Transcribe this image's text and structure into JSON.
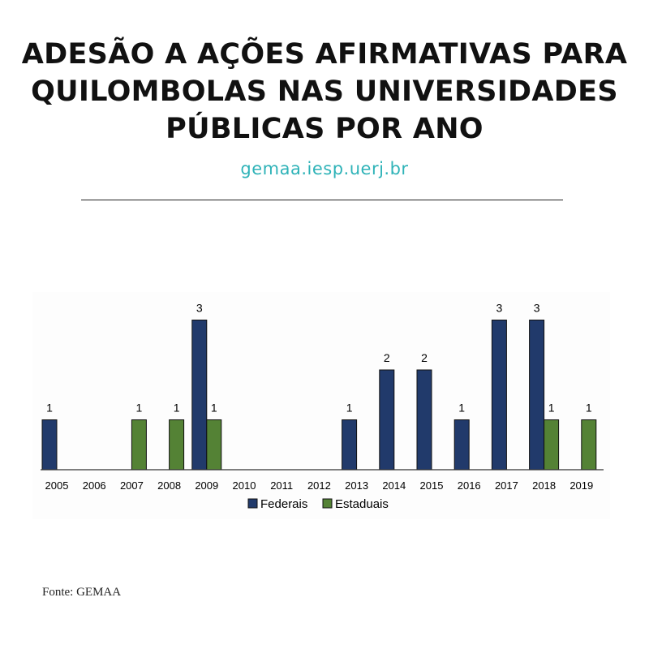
{
  "header": {
    "title_lines": [
      "ADESÃO A AÇÕES AFIRMATIVAS PARA",
      "QUILOMBOLAS NAS UNIVERSIDADES",
      "PÚBLICAS POR ANO"
    ],
    "url": "gemaa.iesp.uerj.br"
  },
  "footer": {
    "source": "Fonte: GEMAA"
  },
  "colors": {
    "federais": "#213a6b",
    "estaduais": "#548235",
    "url": "#2fb3b8",
    "title": "#111111"
  },
  "chart_data": {
    "type": "bar",
    "categories": [
      "2005",
      "2006",
      "2007",
      "2008",
      "2009",
      "2010",
      "2011",
      "2012",
      "2013",
      "2014",
      "2015",
      "2016",
      "2017",
      "2018",
      "2019"
    ],
    "series": [
      {
        "name": "Federais",
        "color": "#213a6b",
        "values": [
          1,
          0,
          0,
          0,
          3,
          0,
          0,
          0,
          1,
          2,
          2,
          1,
          3,
          3,
          0
        ]
      },
      {
        "name": "Estaduais",
        "color": "#548235",
        "values": [
          0,
          0,
          1,
          1,
          1,
          0,
          0,
          0,
          0,
          0,
          0,
          0,
          0,
          1,
          1
        ]
      }
    ],
    "ylim": [
      0,
      3
    ],
    "grid": false,
    "data_labels": true,
    "legend_position": "bottom"
  }
}
